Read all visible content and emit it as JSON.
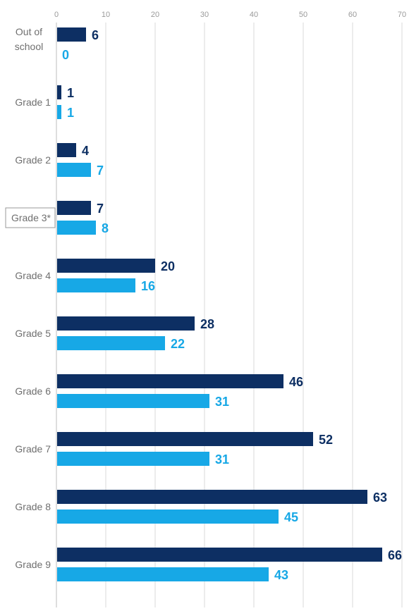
{
  "chart_data": {
    "type": "bar",
    "orientation": "horizontal",
    "categories": [
      "Out of school",
      "Grade 1",
      "Grade 2",
      "Grade 3*",
      "Grade 4",
      "Grade 5",
      "Grade 6",
      "Grade 7",
      "Grade 8",
      "Grade 9"
    ],
    "highlighted_category": "Grade 3*",
    "series": [
      {
        "values": [
          6,
          1,
          4,
          7,
          20,
          28,
          46,
          52,
          63,
          66
        ],
        "color": "#0d2f63"
      },
      {
        "values": [
          0,
          1,
          7,
          8,
          16,
          22,
          31,
          31,
          45,
          43
        ],
        "color": "#17a8e6"
      }
    ],
    "xlim": [
      0,
      70
    ],
    "xticks": [
      0,
      10,
      20,
      30,
      40,
      50,
      60,
      70
    ],
    "grid": true,
    "data_labels": true
  }
}
